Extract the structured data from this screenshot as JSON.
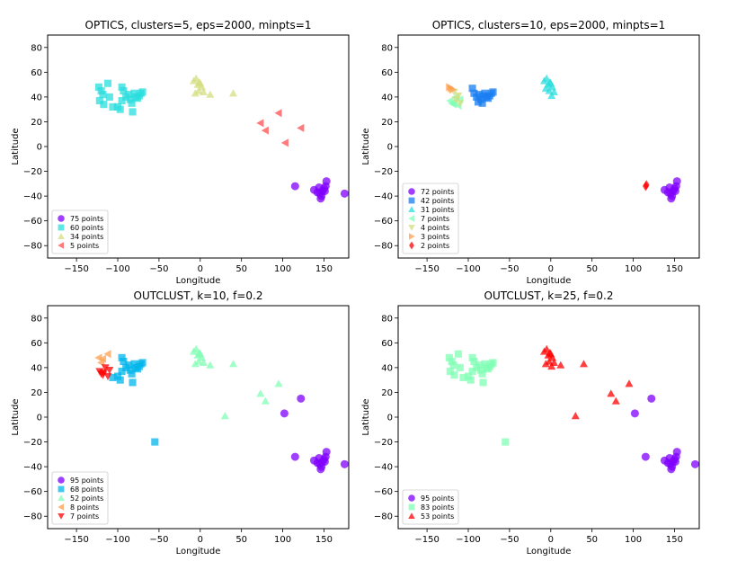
{
  "chart_data": [
    {
      "type": "scatter",
      "title": "OPTICS, clusters=5, eps=2000, minpts=1",
      "xlabel": "Longitude",
      "ylabel": "Latitude",
      "xlim": [
        -185,
        180
      ],
      "ylim": [
        -90,
        90
      ],
      "xticks": [
        -150,
        -100,
        -50,
        0,
        50,
        100,
        150
      ],
      "yticks": [
        -80,
        -60,
        -40,
        -20,
        0,
        20,
        40,
        60,
        80
      ],
      "legend_position": "lower-left",
      "series": [
        {
          "name": "75 points",
          "color": "#8000ff",
          "marker": "circle",
          "points": [
            [
              115,
              -32
            ],
            [
              138,
              -35
            ],
            [
              142,
              -37
            ],
            [
              145,
              -38
            ],
            [
              148,
              -36
            ],
            [
              150,
              -34
            ],
            [
              152,
              -32
            ],
            [
              153,
              -28
            ],
            [
              146,
              -42
            ],
            [
              147,
              -40
            ],
            [
              144,
              -33
            ],
            [
              151,
              -36
            ],
            [
              175,
              -38
            ]
          ]
        },
        {
          "name": "60 points",
          "color": "#2adddd",
          "marker": "square",
          "points": [
            [
              -123,
              48
            ],
            [
              -120,
              45
            ],
            [
              -117,
              34
            ],
            [
              -112,
              51
            ],
            [
              -110,
              40
            ],
            [
              -106,
              32
            ],
            [
              -122,
              37
            ],
            [
              -118,
              42
            ],
            [
              -97,
              30
            ],
            [
              -95,
              37
            ],
            [
              -93,
              45
            ],
            [
              -90,
              40
            ],
            [
              -87,
              42
            ],
            [
              -85,
              38
            ],
            [
              -83,
              35
            ],
            [
              -80,
              43
            ],
            [
              -78,
              40
            ],
            [
              -76,
              39
            ],
            [
              -74,
              41
            ],
            [
              -72,
              43
            ],
            [
              -70,
              44
            ],
            [
              -82,
              28
            ],
            [
              -95,
              48
            ],
            [
              -100,
              32
            ]
          ]
        },
        {
          "name": "34 points",
          "color": "#d4dd80",
          "marker": "triangle-up",
          "points": [
            [
              -8,
              53
            ],
            [
              -5,
              55
            ],
            [
              -3,
              50
            ],
            [
              0,
              51
            ],
            [
              2,
              48
            ],
            [
              -2,
              45
            ],
            [
              -6,
              43
            ],
            [
              4,
              44
            ],
            [
              12,
              42
            ],
            [
              -1,
              52
            ],
            [
              40,
              43
            ]
          ]
        },
        {
          "name": "5 points",
          "color": "#ff4d4d",
          "marker": "triangle-left",
          "points": [
            [
              73,
              19
            ],
            [
              79,
              13
            ],
            [
              95,
              27
            ],
            [
              103,
              3
            ],
            [
              122,
              15
            ]
          ]
        }
      ]
    },
    {
      "type": "scatter",
      "title": "OPTICS, clusters=10, eps=2000, minpts=1",
      "xlabel": "Longitude",
      "ylabel": "Latitude",
      "xlim": [
        -185,
        180
      ],
      "ylim": [
        -90,
        90
      ],
      "xticks": [
        -150,
        -100,
        -50,
        0,
        50,
        100,
        150
      ],
      "yticks": [
        -80,
        -60,
        -40,
        -20,
        0,
        20,
        40,
        60,
        80
      ],
      "legend_position": "lower-left",
      "series": [
        {
          "name": "72 points",
          "color": "#8000ff",
          "marker": "circle",
          "points": [
            [
              138,
              -35
            ],
            [
              142,
              -37
            ],
            [
              145,
              -38
            ],
            [
              148,
              -36
            ],
            [
              150,
              -34
            ],
            [
              152,
              -32
            ],
            [
              153,
              -28
            ],
            [
              146,
              -42
            ],
            [
              147,
              -40
            ],
            [
              144,
              -33
            ],
            [
              151,
              -36
            ]
          ]
        },
        {
          "name": "42 points",
          "color": "#1a7ef2",
          "marker": "square",
          "points": [
            [
              -95,
              47
            ],
            [
              -93,
              43
            ],
            [
              -90,
              40
            ],
            [
              -87,
              42
            ],
            [
              -85,
              38
            ],
            [
              -83,
              35
            ],
            [
              -80,
              43
            ],
            [
              -78,
              40
            ],
            [
              -76,
              39
            ],
            [
              -74,
              41
            ],
            [
              -72,
              43
            ],
            [
              -70,
              44
            ],
            [
              -88,
              36
            ],
            [
              -82,
              41
            ]
          ]
        },
        {
          "name": "31 points",
          "color": "#2adddd",
          "marker": "triangle-up",
          "points": [
            [
              -8,
              53
            ],
            [
              -5,
              55
            ],
            [
              -3,
              50
            ],
            [
              0,
              51
            ],
            [
              2,
              48
            ],
            [
              -2,
              45
            ],
            [
              -6,
              47
            ],
            [
              4,
              44
            ],
            [
              1,
              41
            ],
            [
              -1,
              52
            ]
          ]
        },
        {
          "name": "7 points",
          "color": "#80ffb4",
          "marker": "triangle-left",
          "points": [
            [
              -122,
              37
            ],
            [
              -118,
              34
            ],
            [
              -117,
              36
            ],
            [
              -112,
              33
            ],
            [
              -110,
              38
            ],
            [
              -115,
              40
            ],
            [
              -120,
              35
            ]
          ]
        },
        {
          "name": "4 points",
          "color": "#d4dd80",
          "marker": "triangle-down",
          "points": [
            [
              -117,
              44
            ],
            [
              -112,
              41
            ],
            [
              -115,
              38
            ],
            [
              -110,
              35
            ]
          ]
        },
        {
          "name": "3 points",
          "color": "#ff9d4d",
          "marker": "triangle-right",
          "points": [
            [
              -123,
              48
            ],
            [
              -121,
              47
            ],
            [
              -119,
              46
            ]
          ]
        },
        {
          "name": "2 points",
          "color": "#ff0000",
          "marker": "diamond",
          "points": [
            [
              115,
              -32
            ],
            [
              116,
              -31
            ]
          ]
        }
      ]
    },
    {
      "type": "scatter",
      "title": "OUTCLUST, k=10, f=0.2",
      "xlabel": "Longitude",
      "ylabel": "Latitude",
      "xlim": [
        -185,
        180
      ],
      "ylim": [
        -90,
        90
      ],
      "xticks": [
        -150,
        -100,
        -50,
        0,
        50,
        100,
        150
      ],
      "yticks": [
        -80,
        -60,
        -40,
        -20,
        0,
        20,
        40,
        60,
        80
      ],
      "legend_position": "lower-left",
      "series": [
        {
          "name": "95 points",
          "color": "#8000ff",
          "marker": "circle",
          "points": [
            [
              102,
              3
            ],
            [
              122,
              15
            ],
            [
              115,
              -32
            ],
            [
              138,
              -35
            ],
            [
              142,
              -37
            ],
            [
              145,
              -38
            ],
            [
              148,
              -36
            ],
            [
              150,
              -34
            ],
            [
              152,
              -32
            ],
            [
              153,
              -28
            ],
            [
              146,
              -42
            ],
            [
              147,
              -40
            ],
            [
              144,
              -33
            ],
            [
              151,
              -36
            ],
            [
              175,
              -38
            ]
          ]
        },
        {
          "name": "68 points",
          "color": "#00b5eb",
          "marker": "square",
          "points": [
            [
              -55,
              -20
            ],
            [
              -106,
              32
            ],
            [
              -97,
              30
            ],
            [
              -95,
              37
            ],
            [
              -93,
              45
            ],
            [
              -90,
              40
            ],
            [
              -87,
              42
            ],
            [
              -85,
              38
            ],
            [
              -83,
              35
            ],
            [
              -80,
              43
            ],
            [
              -78,
              40
            ],
            [
              -76,
              39
            ],
            [
              -74,
              41
            ],
            [
              -72,
              43
            ],
            [
              -70,
              44
            ],
            [
              -82,
              28
            ],
            [
              -95,
              48
            ],
            [
              -100,
              33
            ]
          ]
        },
        {
          "name": "52 points",
          "color": "#80ffb4",
          "marker": "triangle-up",
          "points": [
            [
              -8,
              53
            ],
            [
              -5,
              55
            ],
            [
              -3,
              50
            ],
            [
              0,
              51
            ],
            [
              2,
              48
            ],
            [
              -2,
              45
            ],
            [
              -6,
              43
            ],
            [
              4,
              44
            ],
            [
              12,
              42
            ],
            [
              -1,
              52
            ],
            [
              40,
              43
            ],
            [
              30,
              1
            ],
            [
              73,
              19
            ],
            [
              79,
              13
            ],
            [
              95,
              27
            ]
          ]
        },
        {
          "name": "8 points",
          "color": "#ff9d4d",
          "marker": "triangle-left",
          "points": [
            [
              -123,
              48
            ],
            [
              -118,
              47
            ],
            [
              -112,
              51
            ],
            [
              -120,
              44
            ]
          ]
        },
        {
          "name": "7 points",
          "color": "#ff0000",
          "marker": "triangle-down",
          "points": [
            [
              -122,
              37
            ],
            [
              -118,
              34
            ],
            [
              -117,
              36
            ],
            [
              -112,
              33
            ],
            [
              -110,
              38
            ],
            [
              -115,
              40
            ],
            [
              -120,
              35
            ]
          ]
        }
      ]
    },
    {
      "type": "scatter",
      "title": "OUTCLUST, k=25, f=0.2",
      "xlabel": "Longitude",
      "ylabel": "Latitude",
      "xlim": [
        -185,
        180
      ],
      "ylim": [
        -90,
        90
      ],
      "xticks": [
        -150,
        -100,
        -50,
        0,
        50,
        100,
        150
      ],
      "yticks": [
        -80,
        -60,
        -40,
        -20,
        0,
        20,
        40,
        60,
        80
      ],
      "legend_position": "lower-left",
      "series": [
        {
          "name": "95 points",
          "color": "#8000ff",
          "marker": "circle",
          "points": [
            [
              102,
              3
            ],
            [
              122,
              15
            ],
            [
              115,
              -32
            ],
            [
              138,
              -35
            ],
            [
              142,
              -37
            ],
            [
              145,
              -38
            ],
            [
              148,
              -36
            ],
            [
              150,
              -34
            ],
            [
              152,
              -32
            ],
            [
              153,
              -28
            ],
            [
              146,
              -42
            ],
            [
              147,
              -40
            ],
            [
              144,
              -33
            ],
            [
              151,
              -36
            ],
            [
              175,
              -38
            ]
          ]
        },
        {
          "name": "83 points",
          "color": "#80ffb4",
          "marker": "square",
          "points": [
            [
              -55,
              -20
            ],
            [
              -123,
              48
            ],
            [
              -120,
              45
            ],
            [
              -117,
              34
            ],
            [
              -112,
              51
            ],
            [
              -110,
              40
            ],
            [
              -106,
              32
            ],
            [
              -122,
              37
            ],
            [
              -118,
              42
            ],
            [
              -97,
              30
            ],
            [
              -95,
              37
            ],
            [
              -93,
              45
            ],
            [
              -90,
              40
            ],
            [
              -87,
              42
            ],
            [
              -85,
              38
            ],
            [
              -83,
              35
            ],
            [
              -80,
              43
            ],
            [
              -78,
              40
            ],
            [
              -76,
              39
            ],
            [
              -74,
              41
            ],
            [
              -72,
              43
            ],
            [
              -70,
              44
            ],
            [
              -82,
              28
            ],
            [
              -95,
              48
            ],
            [
              -100,
              33
            ]
          ]
        },
        {
          "name": "53 points",
          "color": "#ff0000",
          "marker": "triangle-up",
          "points": [
            [
              -8,
              53
            ],
            [
              -5,
              55
            ],
            [
              -3,
              50
            ],
            [
              0,
              51
            ],
            [
              2,
              48
            ],
            [
              -2,
              45
            ],
            [
              -6,
              43
            ],
            [
              4,
              44
            ],
            [
              12,
              42
            ],
            [
              -1,
              52
            ],
            [
              40,
              43
            ],
            [
              30,
              1
            ],
            [
              73,
              19
            ],
            [
              79,
              13
            ],
            [
              95,
              27
            ],
            [
              1,
              41
            ]
          ]
        }
      ]
    }
  ]
}
